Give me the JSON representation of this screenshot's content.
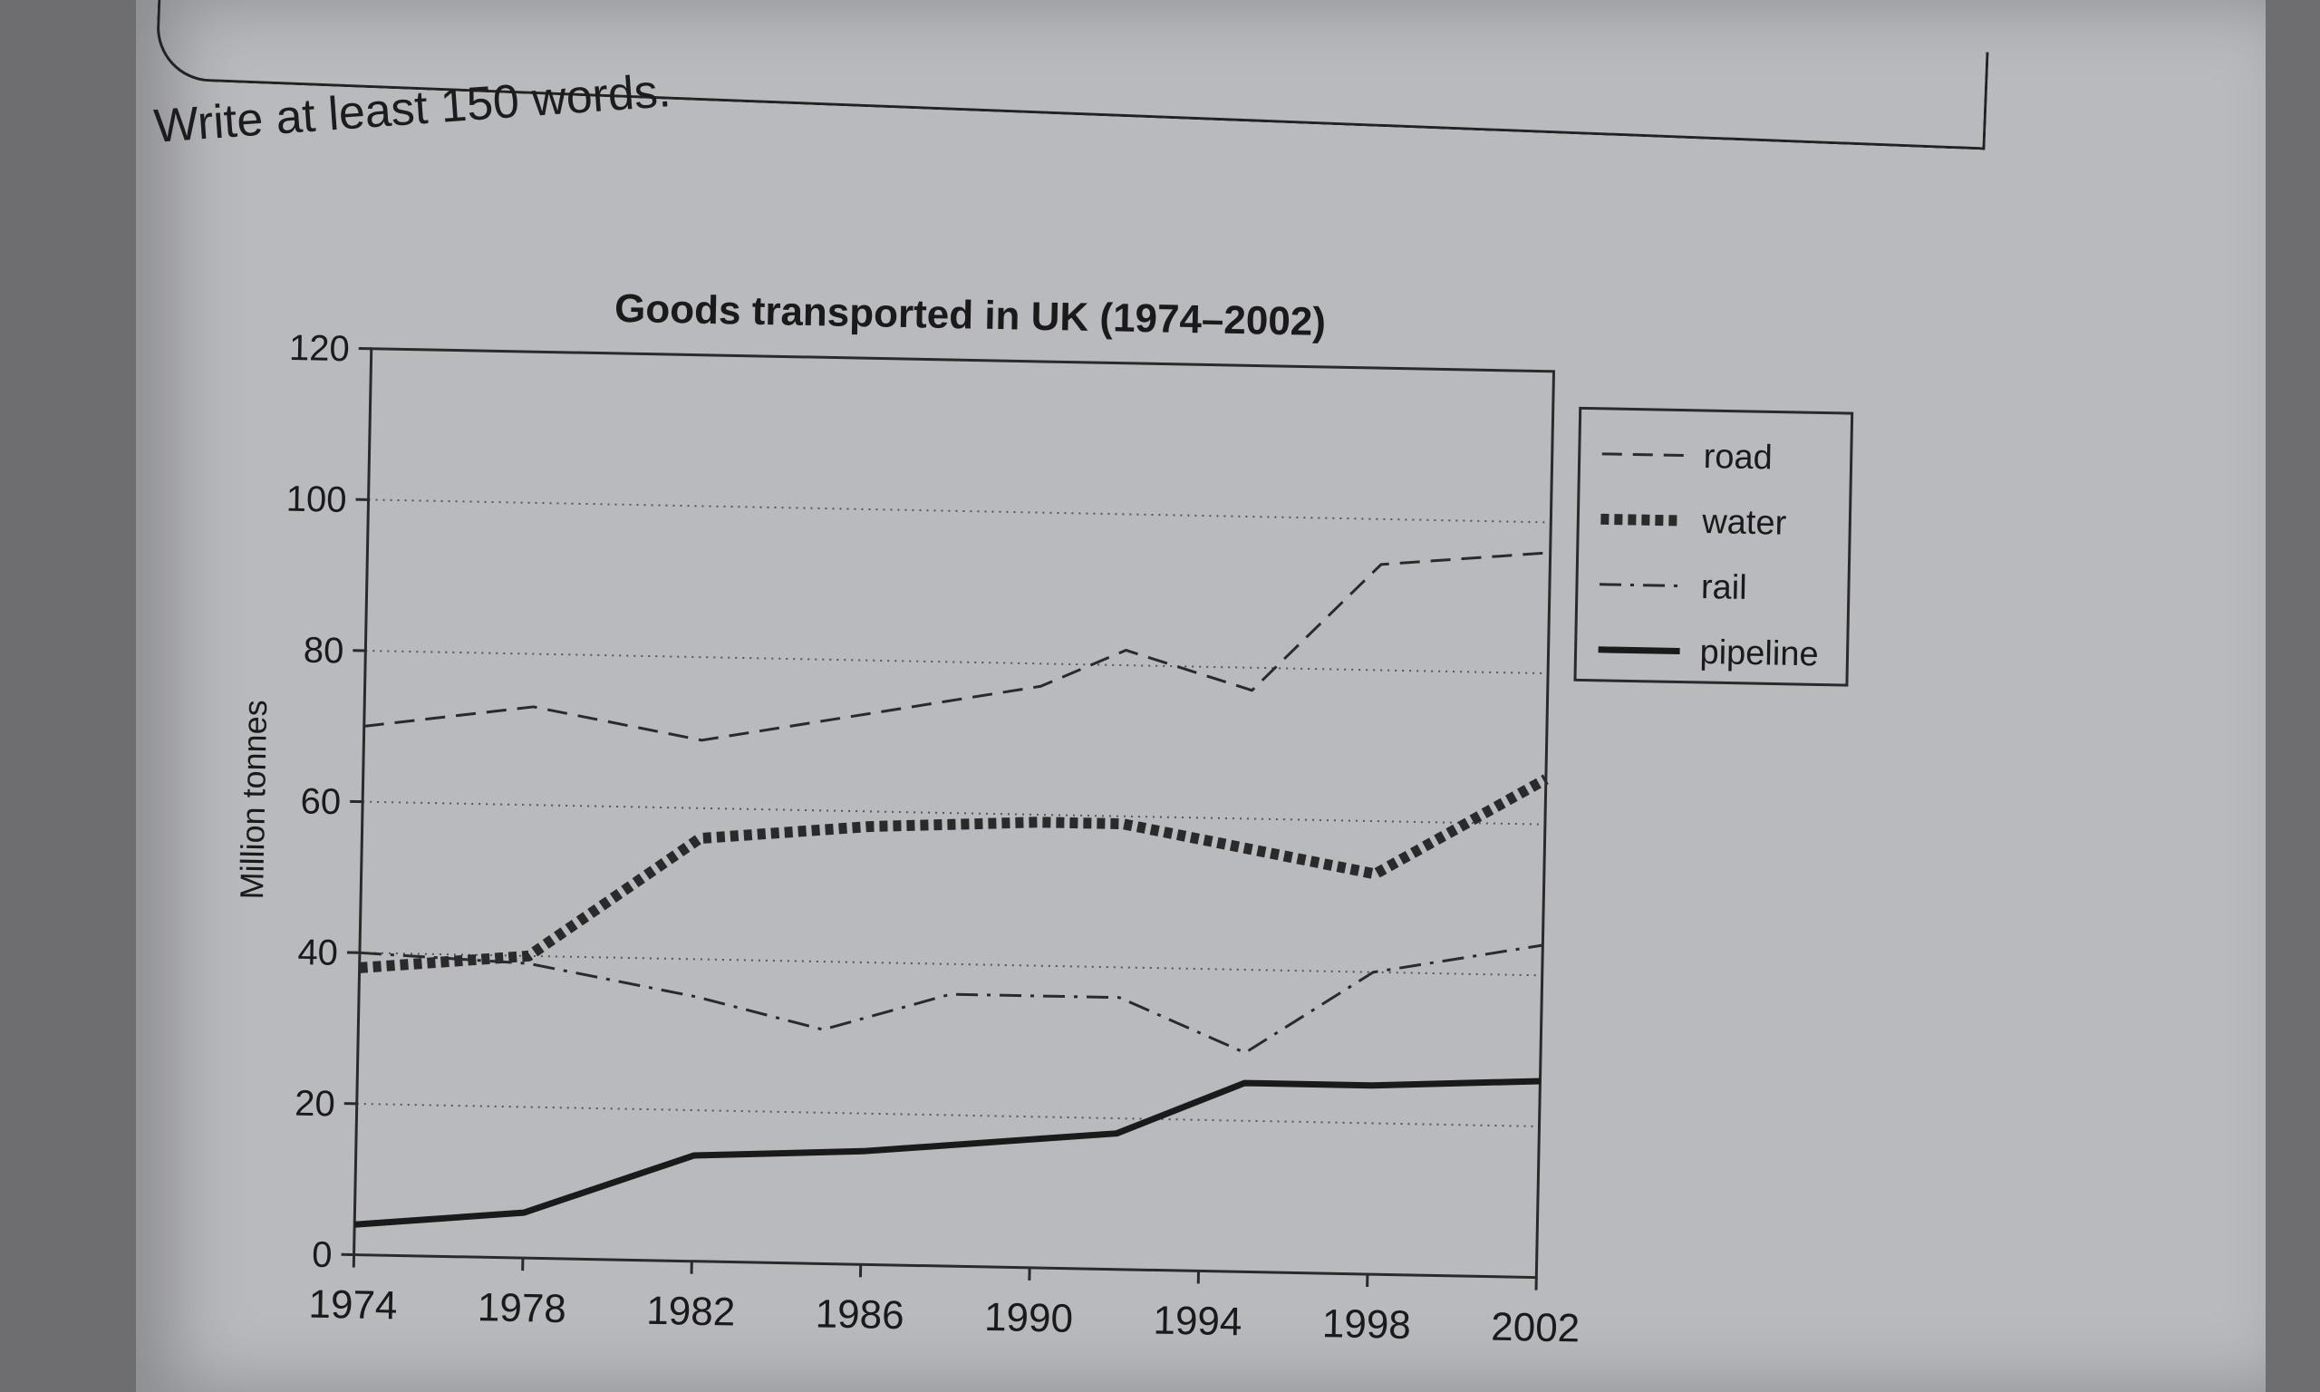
{
  "instruction": "Write at least 150 words.",
  "chart_data": {
    "type": "line",
    "title": "Goods transported in UK (1974–2002)",
    "xlabel": "",
    "ylabel": "Million tonnes",
    "xlim": [
      1974,
      2002
    ],
    "ylim": [
      0,
      120
    ],
    "x_ticks": [
      1974,
      1978,
      1982,
      1986,
      1990,
      1994,
      1998,
      2002
    ],
    "y_ticks": [
      0,
      20,
      40,
      60,
      80,
      100,
      120
    ],
    "grid": "horizontal dotted",
    "legend_position": "right",
    "series": [
      {
        "name": "road",
        "style": "dashed",
        "x": [
          1974,
          1978,
          1982,
          1986,
          1990,
          1992,
          1995,
          1998,
          2002
        ],
        "values": [
          70,
          73,
          69,
          73,
          77,
          82,
          77,
          94,
          96
        ]
      },
      {
        "name": "water",
        "style": "thick-dotted",
        "x": [
          1974,
          1978,
          1982,
          1986,
          1990,
          1992,
          1995,
          1998,
          2002
        ],
        "values": [
          38,
          40,
          56,
          58,
          59,
          59,
          56,
          53,
          66
        ]
      },
      {
        "name": "rail",
        "style": "dash-dot",
        "x": [
          1974,
          1978,
          1982,
          1985,
          1988,
          1992,
          1995,
          1998,
          2002
        ],
        "values": [
          40,
          39,
          35,
          31,
          36,
          36,
          29,
          40,
          44
        ]
      },
      {
        "name": "pipeline",
        "style": "solid",
        "x": [
          1974,
          1978,
          1982,
          1986,
          1990,
          1992,
          1995,
          1998,
          2002
        ],
        "values": [
          4,
          6,
          14,
          15,
          17,
          18,
          25,
          25,
          26
        ]
      }
    ]
  }
}
